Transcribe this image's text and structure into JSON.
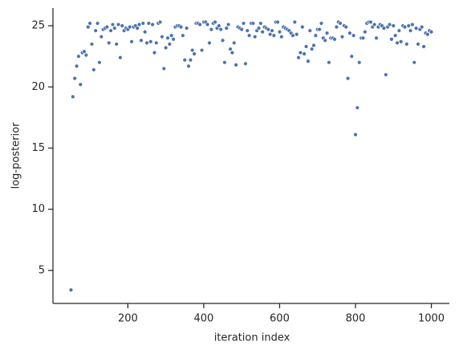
{
  "chart_data": {
    "type": "scatter",
    "xlabel": "iteration index",
    "ylabel": "log-posterior",
    "xlim": [
      2.5,
      1047.5
    ],
    "ylim": [
      2.3,
      26.45
    ],
    "xticks": [
      200,
      400,
      600,
      800,
      1000
    ],
    "yticks": [
      5,
      10,
      15,
      20,
      25
    ],
    "grid": false,
    "x": [
      50,
      55,
      60,
      65,
      70,
      75,
      80,
      85,
      90,
      95,
      100,
      105,
      110,
      115,
      120,
      125,
      130,
      135,
      140,
      145,
      150,
      155,
      160,
      165,
      170,
      175,
      180,
      185,
      190,
      195,
      200,
      205,
      210,
      215,
      220,
      225,
      230,
      235,
      240,
      245,
      250,
      255,
      260,
      265,
      270,
      275,
      280,
      285,
      290,
      295,
      300,
      305,
      310,
      315,
      320,
      325,
      330,
      335,
      340,
      345,
      350,
      355,
      360,
      365,
      370,
      375,
      380,
      385,
      390,
      395,
      400,
      405,
      410,
      415,
      420,
      425,
      430,
      435,
      440,
      445,
      450,
      455,
      460,
      465,
      470,
      475,
      480,
      485,
      490,
      495,
      500,
      505,
      510,
      515,
      520,
      525,
      530,
      535,
      540,
      545,
      550,
      555,
      560,
      565,
      570,
      575,
      580,
      585,
      590,
      595,
      600,
      605,
      610,
      615,
      620,
      625,
      630,
      635,
      640,
      645,
      650,
      655,
      660,
      665,
      670,
      675,
      680,
      685,
      690,
      695,
      700,
      705,
      710,
      715,
      720,
      725,
      730,
      735,
      740,
      745,
      750,
      755,
      760,
      765,
      770,
      775,
      780,
      785,
      790,
      795,
      800,
      805,
      810,
      815,
      820,
      825,
      830,
      835,
      840,
      845,
      850,
      855,
      860,
      865,
      870,
      875,
      880,
      885,
      890,
      895,
      900,
      905,
      910,
      915,
      920,
      925,
      930,
      935,
      940,
      945,
      950,
      955,
      960,
      965,
      970,
      975,
      980,
      985,
      990,
      995,
      1000
    ],
    "series": [
      {
        "color": "#4c72b0",
        "values": [
          3.4,
          19.2,
          20.7,
          21.7,
          22.5,
          20.2,
          22.8,
          22.9,
          22.6,
          24.9,
          25.2,
          23.5,
          21.4,
          24.6,
          25.2,
          22.0,
          24.1,
          24.7,
          24.8,
          24.9,
          23.6,
          24.6,
          25.1,
          24.8,
          23.5,
          25.1,
          22.4,
          25.0,
          24.6,
          24.8,
          24.7,
          24.9,
          23.7,
          24.9,
          25.0,
          24.8,
          25.1,
          23.8,
          25.2,
          24.5,
          23.6,
          25.2,
          23.7,
          25.1,
          22.8,
          23.6,
          25.2,
          25.3,
          24.1,
          21.5,
          23.2,
          24.0,
          23.5,
          24.2,
          23.9,
          24.9,
          25.0,
          25.0,
          24.9,
          24.2,
          22.2,
          24.8,
          21.7,
          22.2,
          23.0,
          22.7,
          25.2,
          25.2,
          25.1,
          23.0,
          25.3,
          25.3,
          25.1,
          23.6,
          24.7,
          25.2,
          25.3,
          24.8,
          25.0,
          24.7,
          23.8,
          22.0,
          24.8,
          25.1,
          23.1,
          22.8,
          23.6,
          21.8,
          24.9,
          24.8,
          24.7,
          25.2,
          21.9,
          24.6,
          24.2,
          25.2,
          25.2,
          24.1,
          24.6,
          24.8,
          25.2,
          24.5,
          24.9,
          24.8,
          24.7,
          24.3,
          24.6,
          24.2,
          25.3,
          25.3,
          24.5,
          24.1,
          24.9,
          24.8,
          24.7,
          24.6,
          24.4,
          24.2,
          25.3,
          24.3,
          22.4,
          22.8,
          24.9,
          22.7,
          23.3,
          22.1,
          24.6,
          23.1,
          23.4,
          24.2,
          24.7,
          24.7,
          25.2,
          24.0,
          23.8,
          24.4,
          22.0,
          24.0,
          24.0,
          23.9,
          24.9,
          25.3,
          25.2,
          24.1,
          25.0,
          24.9,
          20.7,
          24.4,
          22.5,
          24.2,
          16.1,
          18.3,
          22.0,
          24.0,
          24.0,
          24.5,
          25.2,
          25.3,
          25.3,
          24.9,
          25.1,
          24.0,
          24.9,
          25.1,
          25.0,
          24.8,
          21.0,
          24.9,
          25.1,
          23.9,
          25.0,
          24.2,
          23.6,
          24.6,
          23.7,
          25.0,
          24.9,
          23.5,
          25.0,
          24.6,
          25.1,
          22.0,
          24.8,
          23.5,
          24.7,
          24.9,
          23.3,
          24.4,
          24.3,
          24.6,
          24.5
        ]
      }
    ]
  }
}
